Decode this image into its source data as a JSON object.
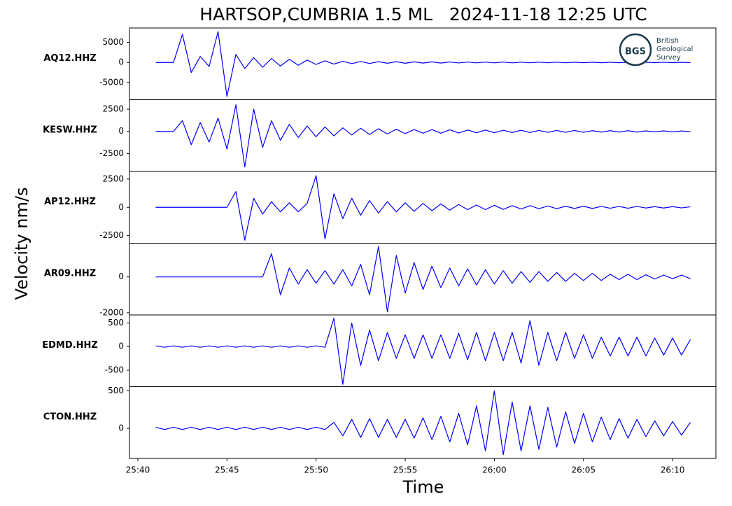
{
  "title": "HARTSOP,CUMBRIA 1.5 ML   2024-11-18 12:25 UTC",
  "xlabel": "Time",
  "ylabel": "Velocity nm/s",
  "logo": {
    "badge": "BGS",
    "line1": "British",
    "line2": "Geological",
    "line3": "Survey"
  },
  "chart_data": [
    {
      "type": "line",
      "label": "AQ12.HHZ",
      "xlim": [
        1539.53,
        1572.43
      ],
      "ylim": [
        -9300,
        8600
      ],
      "yticks": [
        5000,
        0,
        -5000
      ],
      "x": [
        1541,
        1541.5,
        1542,
        1542.5,
        1543,
        1543.5,
        1544,
        1544.5,
        1545,
        1545.5,
        1546,
        1546.5,
        1547,
        1547.5,
        1548,
        1548.5,
        1549,
        1549.5,
        1550,
        1550.5,
        1551,
        1551.5,
        1552,
        1552.5,
        1553,
        1553.5,
        1554,
        1554.5,
        1555,
        1555.5,
        1556,
        1556.5,
        1557,
        1557.5,
        1558,
        1558.5,
        1559,
        1559.5,
        1560,
        1560.5,
        1561,
        1561.5,
        1562,
        1562.5,
        1563,
        1563.5,
        1564,
        1564.5,
        1565,
        1565.5,
        1566,
        1566.5,
        1567,
        1567.5,
        1568,
        1568.5,
        1569,
        1569.5,
        1570,
        1570.5,
        1571
      ],
      "series": [
        {
          "color": "#0000ff",
          "values": [
            0,
            0,
            0,
            7000,
            -2500,
            1500,
            -1000,
            7700,
            -8500,
            2000,
            -1500,
            1200,
            -1200,
            1000,
            -900,
            800,
            -700,
            600,
            -500,
            400,
            -400,
            300,
            -300,
            250,
            -250,
            200,
            -200,
            200,
            -200,
            150,
            -150,
            150,
            -150,
            120,
            -120,
            100,
            -100,
            100,
            -100,
            100,
            -100,
            80,
            -80,
            80,
            -80,
            80,
            -80,
            60,
            -60,
            60,
            -60,
            60,
            -60,
            50,
            -50,
            50,
            -50,
            50,
            -50,
            40,
            -40
          ]
        }
      ]
    },
    {
      "type": "line",
      "label": "KESW.HHZ",
      "xlim": [
        1539.53,
        1572.43
      ],
      "ylim": [
        -4520,
        3570
      ],
      "yticks": [
        2500,
        0,
        -2500
      ],
      "x": [
        1541,
        1541.5,
        1542,
        1542.5,
        1543,
        1543.5,
        1544,
        1544.5,
        1545,
        1545.5,
        1546,
        1546.5,
        1547,
        1547.5,
        1548,
        1548.5,
        1549,
        1549.5,
        1550,
        1550.5,
        1551,
        1551.5,
        1552,
        1552.5,
        1553,
        1553.5,
        1554,
        1554.5,
        1555,
        1555.5,
        1556,
        1556.5,
        1557,
        1557.5,
        1558,
        1558.5,
        1559,
        1559.5,
        1560,
        1560.5,
        1561,
        1561.5,
        1562,
        1562.5,
        1563,
        1563.5,
        1564,
        1564.5,
        1565,
        1565.5,
        1566,
        1566.5,
        1567,
        1567.5,
        1568,
        1568.5,
        1569,
        1569.5,
        1570,
        1570.5,
        1571
      ],
      "series": [
        {
          "color": "#0000ff",
          "values": [
            0,
            0,
            0,
            1200,
            -1500,
            1000,
            -1200,
            1500,
            -2000,
            3000,
            -4000,
            2500,
            -1800,
            1200,
            -1000,
            800,
            -700,
            600,
            -600,
            500,
            -500,
            400,
            -400,
            350,
            -350,
            300,
            -300,
            250,
            -250,
            200,
            -200,
            200,
            -200,
            180,
            -180,
            150,
            -150,
            150,
            -150,
            120,
            -120,
            120,
            -120,
            100,
            -100,
            100,
            -100,
            100,
            -100,
            80,
            -80,
            80,
            -80,
            80,
            -80,
            60,
            -60,
            60,
            -60,
            50,
            -50
          ]
        }
      ]
    },
    {
      "type": "line",
      "label": "AP12.HHZ",
      "xlim": [
        1539.53,
        1572.43
      ],
      "ylim": [
        -3170,
        3170
      ],
      "yticks": [
        2500,
        0,
        -2500
      ],
      "x": [
        1541,
        1541.5,
        1542,
        1542.5,
        1543,
        1543.5,
        1544,
        1544.5,
        1545,
        1545.5,
        1546,
        1546.5,
        1547,
        1547.5,
        1548,
        1548.5,
        1549,
        1549.5,
        1550,
        1550.5,
        1551,
        1551.5,
        1552,
        1552.5,
        1553,
        1553.5,
        1554,
        1554.5,
        1555,
        1555.5,
        1556,
        1556.5,
        1557,
        1557.5,
        1558,
        1558.5,
        1559,
        1559.5,
        1560,
        1560.5,
        1561,
        1561.5,
        1562,
        1562.5,
        1563,
        1563.5,
        1564,
        1564.5,
        1565,
        1565.5,
        1566,
        1566.5,
        1567,
        1567.5,
        1568,
        1568.5,
        1569,
        1569.5,
        1570,
        1570.5,
        1571
      ],
      "series": [
        {
          "color": "#0000ff",
          "values": [
            0,
            0,
            0,
            0,
            0,
            0,
            0,
            0,
            0,
            1400,
            -2900,
            800,
            -600,
            500,
            -400,
            400,
            -400,
            350,
            2800,
            -2800,
            1200,
            -1000,
            800,
            -700,
            600,
            -500,
            500,
            -400,
            400,
            -350,
            350,
            -300,
            300,
            -250,
            250,
            -200,
            200,
            -200,
            180,
            -180,
            150,
            -150,
            150,
            -120,
            120,
            -120,
            100,
            -100,
            100,
            -100,
            80,
            -80,
            80,
            -80,
            80,
            -60,
            60,
            -60,
            60,
            -50,
            50
          ]
        }
      ]
    },
    {
      "type": "line",
      "label": "AR09.HHZ",
      "xlim": [
        1539.53,
        1572.43
      ],
      "ylim": [
        -2120,
        1880
      ],
      "yticks": [
        0,
        -2000
      ],
      "x": [
        1541,
        1541.5,
        1542,
        1542.5,
        1543,
        1543.5,
        1544,
        1544.5,
        1545,
        1545.5,
        1546,
        1546.5,
        1547,
        1547.5,
        1548,
        1548.5,
        1549,
        1549.5,
        1550,
        1550.5,
        1551,
        1551.5,
        1552,
        1552.5,
        1553,
        1553.5,
        1554,
        1554.5,
        1555,
        1555.5,
        1556,
        1556.5,
        1557,
        1557.5,
        1558,
        1558.5,
        1559,
        1559.5,
        1560,
        1560.5,
        1561,
        1561.5,
        1562,
        1562.5,
        1563,
        1563.5,
        1564,
        1564.5,
        1565,
        1565.5,
        1566,
        1566.5,
        1567,
        1567.5,
        1568,
        1568.5,
        1569,
        1569.5,
        1570,
        1570.5,
        1571
      ],
      "series": [
        {
          "color": "#0000ff",
          "values": [
            0,
            0,
            0,
            0,
            0,
            0,
            0,
            0,
            0,
            0,
            0,
            0,
            0,
            1300,
            -1000,
            500,
            -400,
            400,
            -350,
            350,
            -400,
            400,
            -500,
            700,
            -1000,
            1700,
            -1950,
            1200,
            -900,
            800,
            -700,
            600,
            -600,
            500,
            -500,
            450,
            -450,
            400,
            -400,
            350,
            -350,
            300,
            -300,
            300,
            -250,
            250,
            -250,
            200,
            -200,
            200,
            -200,
            150,
            -150,
            150,
            -150,
            120,
            -120,
            100,
            -100,
            100,
            -100
          ]
        }
      ]
    },
    {
      "type": "line",
      "label": "EDMD.HHZ",
      "xlim": [
        1539.53,
        1572.43
      ],
      "ylim": [
        -850,
        670
      ],
      "yticks": [
        500,
        0,
        -500
      ],
      "x": [
        1541,
        1541.5,
        1542,
        1542.5,
        1543,
        1543.5,
        1544,
        1544.5,
        1545,
        1545.5,
        1546,
        1546.5,
        1547,
        1547.5,
        1548,
        1548.5,
        1549,
        1549.5,
        1550,
        1550.5,
        1551,
        1551.5,
        1552,
        1552.5,
        1553,
        1553.5,
        1554,
        1554.5,
        1555,
        1555.5,
        1556,
        1556.5,
        1557,
        1557.5,
        1558,
        1558.5,
        1559,
        1559.5,
        1560,
        1560.5,
        1561,
        1561.5,
        1562,
        1562.5,
        1563,
        1563.5,
        1564,
        1564.5,
        1565,
        1565.5,
        1566,
        1566.5,
        1567,
        1567.5,
        1568,
        1568.5,
        1569,
        1569.5,
        1570,
        1570.5,
        1571
      ],
      "series": [
        {
          "color": "#0000ff",
          "values": [
            15,
            -15,
            15,
            -15,
            15,
            -15,
            15,
            -15,
            15,
            -15,
            15,
            -15,
            15,
            -15,
            15,
            -15,
            15,
            -15,
            15,
            -15,
            600,
            -800,
            500,
            -400,
            350,
            -300,
            300,
            -250,
            250,
            -250,
            250,
            -250,
            250,
            -250,
            280,
            -280,
            300,
            -300,
            300,
            -300,
            300,
            -350,
            550,
            -400,
            300,
            -300,
            300,
            -250,
            250,
            -250,
            200,
            -200,
            200,
            -200,
            200,
            -200,
            180,
            -180,
            180,
            -180,
            150
          ]
        }
      ]
    },
    {
      "type": "line",
      "label": "CTON.HHZ",
      "xlim": [
        1539.53,
        1572.43
      ],
      "ylim": [
        -400,
        555
      ],
      "yticks": [
        500,
        0
      ],
      "xticks": [
        {
          "value": 1540,
          "label": "25:40"
        },
        {
          "value": 1545,
          "label": "25:45"
        },
        {
          "value": 1550,
          "label": "25:50"
        },
        {
          "value": 1555,
          "label": "25:55"
        },
        {
          "value": 1560,
          "label": "26:00"
        },
        {
          "value": 1565,
          "label": "26:05"
        },
        {
          "value": 1570,
          "label": "26:10"
        }
      ],
      "x": [
        1541,
        1541.5,
        1542,
        1542.5,
        1543,
        1543.5,
        1544,
        1544.5,
        1545,
        1545.5,
        1546,
        1546.5,
        1547,
        1547.5,
        1548,
        1548.5,
        1549,
        1549.5,
        1550,
        1550.5,
        1551,
        1551.5,
        1552,
        1552.5,
        1553,
        1553.5,
        1554,
        1554.5,
        1555,
        1555.5,
        1556,
        1556.5,
        1557,
        1557.5,
        1558,
        1558.5,
        1559,
        1559.5,
        1560,
        1560.5,
        1561,
        1561.5,
        1562,
        1562.5,
        1563,
        1563.5,
        1564,
        1564.5,
        1565,
        1565.5,
        1566,
        1566.5,
        1567,
        1567.5,
        1568,
        1568.5,
        1569,
        1569.5,
        1570,
        1570.5,
        1571
      ],
      "series": [
        {
          "color": "#0000ff",
          "values": [
            15,
            -15,
            15,
            -15,
            15,
            -15,
            15,
            -15,
            15,
            -15,
            15,
            -15,
            15,
            -15,
            15,
            -15,
            15,
            -15,
            15,
            -15,
            80,
            -100,
            120,
            -120,
            130,
            -120,
            120,
            -120,
            120,
            -130,
            140,
            -150,
            160,
            -180,
            200,
            -220,
            300,
            -300,
            500,
            -350,
            350,
            -300,
            300,
            -280,
            280,
            -250,
            220,
            -200,
            200,
            -180,
            150,
            -150,
            130,
            -130,
            120,
            -110,
            100,
            -100,
            90,
            -90,
            80
          ]
        }
      ]
    }
  ]
}
